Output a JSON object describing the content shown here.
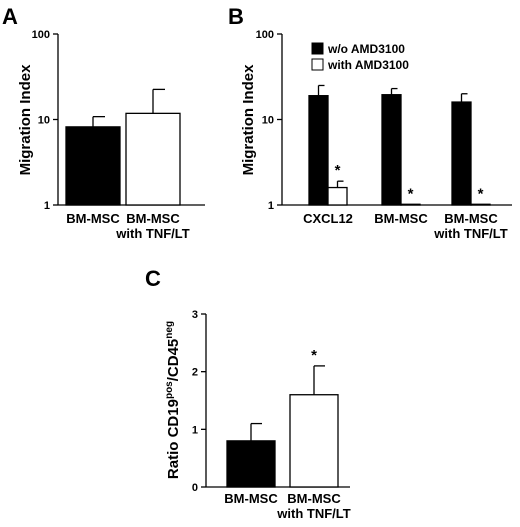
{
  "chart_data": [
    {
      "panel": "A",
      "type": "bar",
      "yscale": "log",
      "ylim": [
        1,
        100
      ],
      "ylabel": "Migration Index",
      "yticks": [
        "1",
        "10",
        "100"
      ],
      "categories": [
        [
          "BM-MSC"
        ],
        [
          "BM-MSC",
          "with TNF/LT"
        ]
      ],
      "series": [
        {
          "fill": "#000000",
          "values": [
            8.2,
            11.8
          ],
          "errors": [
            10.8,
            22.5
          ]
        }
      ],
      "annotations": []
    },
    {
      "panel": "B",
      "type": "bar",
      "yscale": "log",
      "ylim": [
        1,
        100
      ],
      "ylabel": "Migration Index",
      "yticks": [
        "1",
        "10",
        "100"
      ],
      "categories": [
        [
          "CXCL12"
        ],
        [
          "BM-MSC"
        ],
        [
          "BM-MSC",
          "with TNF/LT"
        ]
      ],
      "series": [
        {
          "name": "w/o AMD3100",
          "fill": "#000000",
          "values": [
            19,
            19.5,
            16
          ],
          "errors": [
            25,
            23,
            20
          ]
        },
        {
          "name": "with AMD3100",
          "fill": "#ffffff",
          "values": [
            1.6,
            1.02,
            1.02
          ],
          "errors": [
            1.9,
            1.02,
            1.02
          ]
        }
      ],
      "stars": [
        [
          false,
          true
        ],
        [
          false,
          true
        ],
        [
          false,
          true
        ]
      ],
      "star_symbol": "*",
      "legend": "top-right"
    },
    {
      "panel": "C",
      "type": "bar",
      "yscale": "linear",
      "ylim": [
        0,
        3
      ],
      "ylabel_main": "Ratio CD19",
      "ylabel_sup1": "pos",
      "ylabel_mid": "/CD45",
      "ylabel_sup2": "neg",
      "yticks": [
        "0",
        "1",
        "2",
        "3"
      ],
      "categories": [
        [
          "BM-MSC"
        ],
        [
          "BM-MSC",
          "with TNF/LT"
        ]
      ],
      "series": [
        {
          "fill": "#000000",
          "values": [
            0.8,
            1.6
          ],
          "errors": [
            1.1,
            2.1
          ]
        }
      ],
      "stars": [
        false,
        true
      ],
      "star_symbol": "*"
    }
  ]
}
